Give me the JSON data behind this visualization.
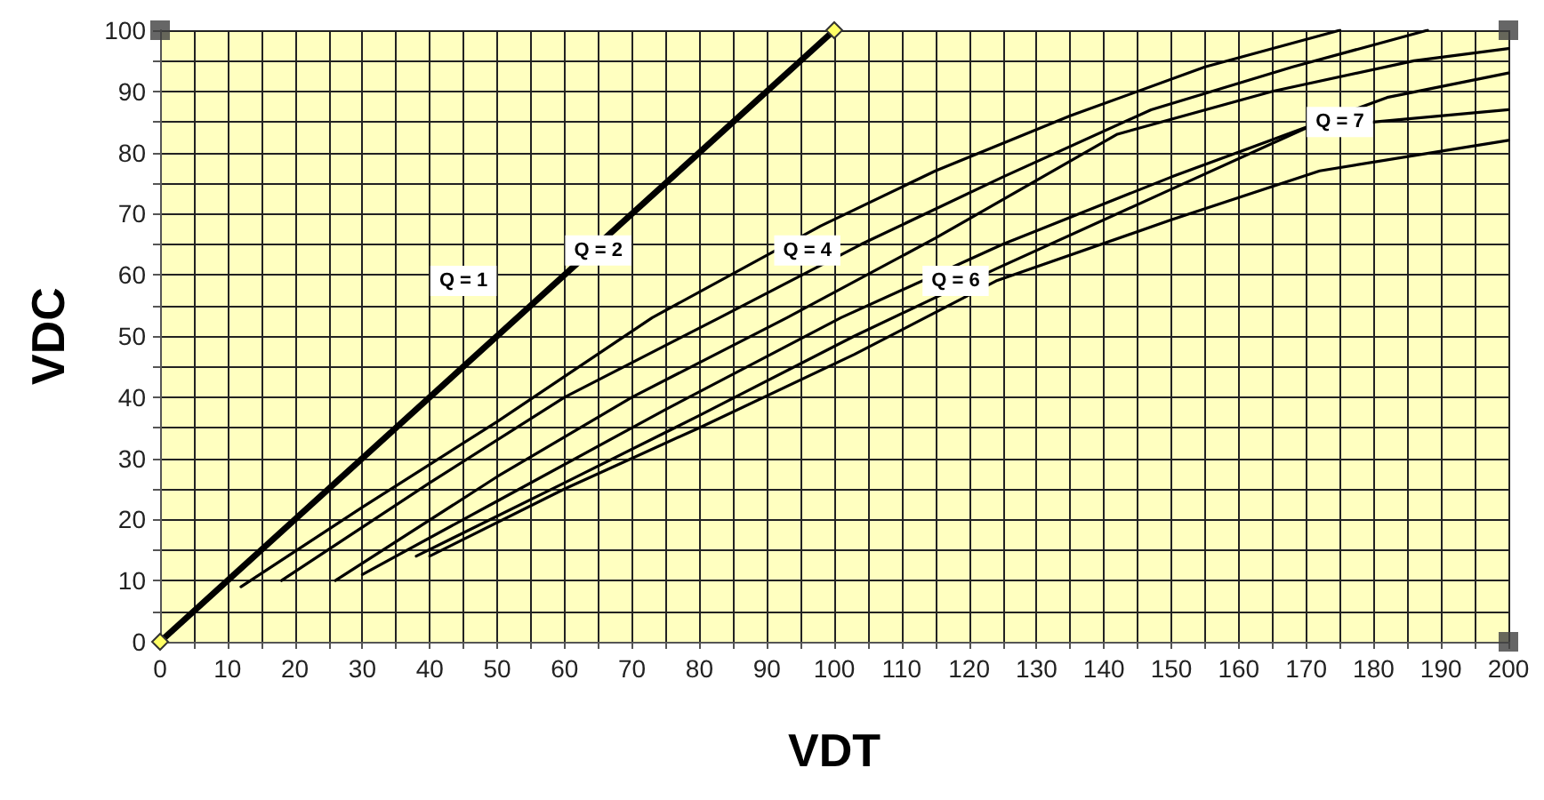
{
  "chart_data": {
    "type": "line",
    "xlabel": "VDT",
    "ylabel": "VDC",
    "xlim": [
      0,
      200
    ],
    "ylim": [
      0,
      100
    ],
    "xticks": [
      0,
      {
        "value": 5,
        "label": null
      },
      10,
      {
        "value": 15,
        "label": null
      },
      20,
      {
        "value": 25,
        "label": null
      },
      30,
      {
        "value": 35,
        "label": null
      },
      40,
      {
        "value": 45,
        "label": null
      },
      50,
      {
        "value": 55,
        "label": null
      },
      60,
      {
        "value": 65,
        "label": null
      },
      70,
      {
        "value": 75,
        "label": null
      },
      80,
      {
        "value": 85,
        "label": null
      },
      90,
      {
        "value": 95,
        "label": null
      },
      100,
      {
        "value": 105,
        "label": null
      },
      110,
      {
        "value": 115,
        "label": null
      },
      120,
      {
        "value": 125,
        "label": null
      },
      130,
      {
        "value": 135,
        "label": null
      },
      140,
      {
        "value": 145,
        "label": null
      },
      150,
      {
        "value": 155,
        "label": null
      },
      160,
      {
        "value": 165,
        "label": null
      },
      170,
      {
        "value": 175,
        "label": null
      },
      180,
      {
        "value": 185,
        "label": null
      },
      190,
      {
        "value": 195,
        "label": null
      },
      200
    ],
    "yticks": [
      0,
      {
        "value": 5,
        "label": null
      },
      10,
      {
        "value": 15,
        "label": null
      },
      20,
      {
        "value": 25,
        "label": null
      },
      30,
      {
        "value": 35,
        "label": null
      },
      40,
      {
        "value": 45,
        "label": null
      },
      50,
      {
        "value": 55,
        "label": null
      },
      60,
      {
        "value": 65,
        "label": null
      },
      70,
      {
        "value": 75,
        "label": null
      },
      80,
      {
        "value": 85,
        "label": null
      },
      90,
      {
        "value": 95,
        "label": null
      },
      100
    ],
    "grid": true,
    "line_style": "solid",
    "marker": "none",
    "series": [
      {
        "color": "#000000",
        "marker": "diamond",
        "x": [
          0,
          100
        ],
        "values": [
          0,
          100
        ]
      },
      {
        "color": "#000000",
        "x": [
          12,
          30,
          50,
          73,
          98,
          115,
          135,
          155,
          175
        ],
        "values": [
          9,
          22,
          36,
          53,
          68,
          77,
          86,
          94,
          100
        ]
      },
      {
        "color": "#000000",
        "x": [
          18,
          40,
          60,
          83,
          104,
          125,
          147,
          168,
          188
        ],
        "values": [
          10,
          26,
          40,
          53,
          65,
          76,
          87,
          94,
          100
        ]
      },
      {
        "color": "#000000",
        "x": [
          26,
          50,
          70,
          93,
          115,
          142,
          165,
          186,
          200
        ],
        "values": [
          10,
          27,
          40,
          53,
          66,
          83,
          90,
          95,
          97
        ]
      },
      {
        "color": "#000000",
        "x": [
          30,
          50,
          75,
          101,
          125,
          150,
          182,
          200
        ],
        "values": [
          11,
          23,
          38,
          53,
          65,
          76,
          89,
          93
        ]
      },
      {
        "color": "#000000",
        "x": [
          38,
          60,
          80,
          103,
          124,
          150,
          170,
          200
        ],
        "values": [
          14,
          26,
          37,
          50,
          61,
          74,
          84,
          87
        ]
      },
      {
        "color": "#000000",
        "x": [
          40,
          60,
          80,
          103,
          124,
          150,
          172,
          200
        ],
        "values": [
          14,
          25,
          35,
          47,
          59,
          69,
          77,
          82
        ]
      },
      {
        "type": "scatter",
        "color": "#404040",
        "marker": "square",
        "x": [
          0,
          200,
          200
        ],
        "values": [
          100,
          100,
          0
        ]
      }
    ],
    "annotations": [
      {
        "text": "Q = 1",
        "x": 45,
        "y": 59
      },
      {
        "text": "Q = 2",
        "x": 65,
        "y": 64
      },
      {
        "text": "Q = 4",
        "x": 96,
        "y": 64
      },
      {
        "text": "Q = 6",
        "x": 118,
        "y": 59
      },
      {
        "text": "Q = 7",
        "x": 175,
        "y": 85
      }
    ]
  }
}
